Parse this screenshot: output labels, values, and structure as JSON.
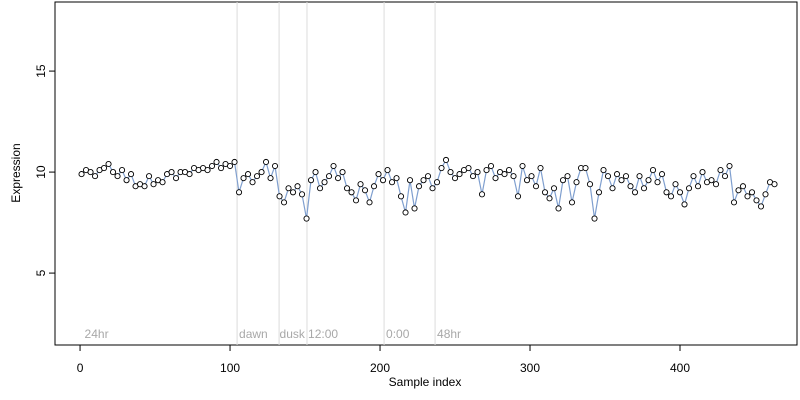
{
  "chart_data": {
    "type": "scatter",
    "x_label": "Sample index",
    "y_label": "Expression",
    "xlim": [
      -16.7,
      478
    ],
    "ylim": [
      1.44,
      18.42
    ],
    "xticks": [
      0,
      100,
      200,
      300,
      400
    ],
    "yticks": [
      5,
      10,
      15
    ],
    "vlines": [
      104.7,
      132.7,
      151.3,
      202.7,
      236.7
    ],
    "annotations": [
      {
        "x": 3,
        "label": "24hr"
      },
      {
        "x": 106,
        "label": "dawn"
      },
      {
        "x": 133,
        "label": "dusk"
      },
      {
        "x": 152,
        "label": "12:00"
      },
      {
        "x": 204,
        "label": "0:00"
      },
      {
        "x": 238,
        "label": "48hr"
      }
    ],
    "x": [
      1,
      4,
      7,
      10,
      13,
      16,
      19,
      22,
      25,
      28,
      31,
      34,
      37,
      40,
      43,
      46,
      49,
      52,
      55,
      58,
      61,
      64,
      67,
      70,
      73,
      76,
      79,
      82,
      85,
      88,
      91,
      94,
      97,
      100,
      103,
      106,
      109,
      112,
      115,
      118,
      121,
      124,
      127,
      130,
      133,
      136,
      139,
      142,
      145,
      148,
      151,
      154,
      157,
      160,
      163,
      166,
      169,
      172,
      175,
      178,
      181,
      184,
      187,
      190,
      193,
      196,
      199,
      202,
      205,
      208,
      211,
      214,
      217,
      220,
      223,
      226,
      229,
      232,
      235,
      238,
      241,
      244,
      247,
      250,
      253,
      256,
      259,
      262,
      265,
      268,
      271,
      274,
      277,
      280,
      283,
      286,
      289,
      292,
      295,
      298,
      301,
      304,
      307,
      310,
      313,
      316,
      319,
      322,
      325,
      328,
      331,
      334,
      337,
      340,
      343,
      346,
      349,
      352,
      355,
      358,
      361,
      364,
      367,
      370,
      373,
      376,
      379,
      382,
      385,
      388,
      391,
      394,
      397,
      400,
      403,
      406,
      409,
      412,
      415,
      418,
      421,
      424,
      427,
      430,
      433,
      436,
      439,
      442,
      445,
      448,
      451,
      454,
      457,
      460,
      463
    ],
    "series": [
      {
        "color": "#7f9fcf",
        "values": [
          9.9,
          10.1,
          10.0,
          9.8,
          10.1,
          10.2,
          10.4,
          10.0,
          9.8,
          10.1,
          9.6,
          9.9,
          9.3,
          9.4,
          9.3,
          9.8,
          9.4,
          9.6,
          9.5,
          9.9,
          10.0,
          9.7,
          10.0,
          10.0,
          9.9,
          10.2,
          10.1,
          10.2,
          10.1,
          10.3,
          10.5,
          10.2,
          10.4,
          10.3,
          10.5,
          9.0,
          9.7,
          9.9,
          9.5,
          9.8,
          10.0,
          10.5,
          9.7,
          10.3,
          8.8,
          8.5,
          9.2,
          9.0,
          9.3,
          8.9,
          7.7,
          9.6,
          10.0,
          9.2,
          9.5,
          9.8,
          10.3,
          9.7,
          10.0,
          9.2,
          9.0,
          8.6,
          9.4,
          9.1,
          8.5,
          9.3,
          9.9,
          9.6,
          10.1,
          9.5,
          9.7,
          8.8,
          8.0,
          9.6,
          8.2,
          9.3,
          9.6,
          9.8,
          9.2,
          9.5,
          10.2,
          10.6,
          10.0,
          9.7,
          9.9,
          10.1,
          10.2,
          9.8,
          10.0,
          8.9,
          10.1,
          10.3,
          9.7,
          10.0,
          9.9,
          10.1,
          9.8,
          8.8,
          10.3,
          9.6,
          9.8,
          9.3,
          10.2,
          9.0,
          8.7,
          9.2,
          8.2,
          9.6,
          9.8,
          8.5,
          9.5,
          10.2,
          10.2,
          9.4,
          7.7,
          9.0,
          10.1,
          9.8,
          9.2,
          9.9,
          9.6,
          9.8,
          9.3,
          9.0,
          9.8,
          9.2,
          9.6,
          10.1,
          9.5,
          9.9,
          9.0,
          8.8,
          9.4,
          9.0,
          8.4,
          9.2,
          9.8,
          9.3,
          10.0,
          9.5,
          9.6,
          9.4,
          10.1,
          9.8,
          10.3,
          8.5,
          9.1,
          9.3,
          8.8,
          9.0,
          8.6,
          8.3,
          8.9,
          9.5,
          9.4
        ]
      }
    ]
  }
}
